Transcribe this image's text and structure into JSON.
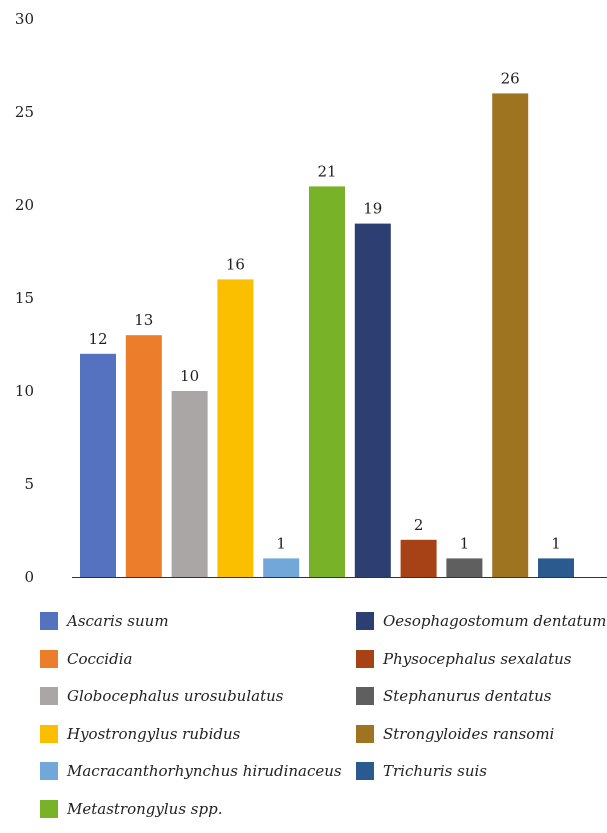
{
  "chart_data": {
    "type": "bar",
    "categories": [
      "Ascaris suum",
      "Coccidia",
      "Globocephalus urosubulatus",
      "Hyostrongylus rubidus",
      "Macracanthorhynchus hirudinaceus",
      "Metastrongylus spp.",
      "Oesophagostomum dentatum",
      "Physocephalus sexalatus",
      "Stephanurus dentatus",
      "Strongyloides ransomi",
      "Trichuris suis"
    ],
    "values": [
      12,
      13,
      10,
      16,
      1,
      21,
      19,
      2,
      1,
      26,
      1
    ],
    "value_labels": [
      "12",
      "13",
      "10",
      "16",
      "1",
      "21",
      "19",
      "2",
      "1",
      "26",
      "1"
    ],
    "colors": [
      "#5472C0",
      "#EC7D2A",
      "#A9A6A5",
      "#FCBF00",
      "#72A7DA",
      "#77B228",
      "#2C3E72",
      "#A64215",
      "#5F5F5F",
      "#9E7421",
      "#2B5A8E"
    ],
    "y_ticks": [
      0,
      5,
      10,
      15,
      20,
      25,
      30
    ],
    "y_tick_labels": [
      "0",
      "5",
      "10",
      "15",
      "20",
      "25",
      "30"
    ],
    "ylim": [
      0,
      30
    ],
    "grid": false,
    "legend_position": "bottom",
    "title": "",
    "xlabel": "",
    "ylabel": ""
  }
}
